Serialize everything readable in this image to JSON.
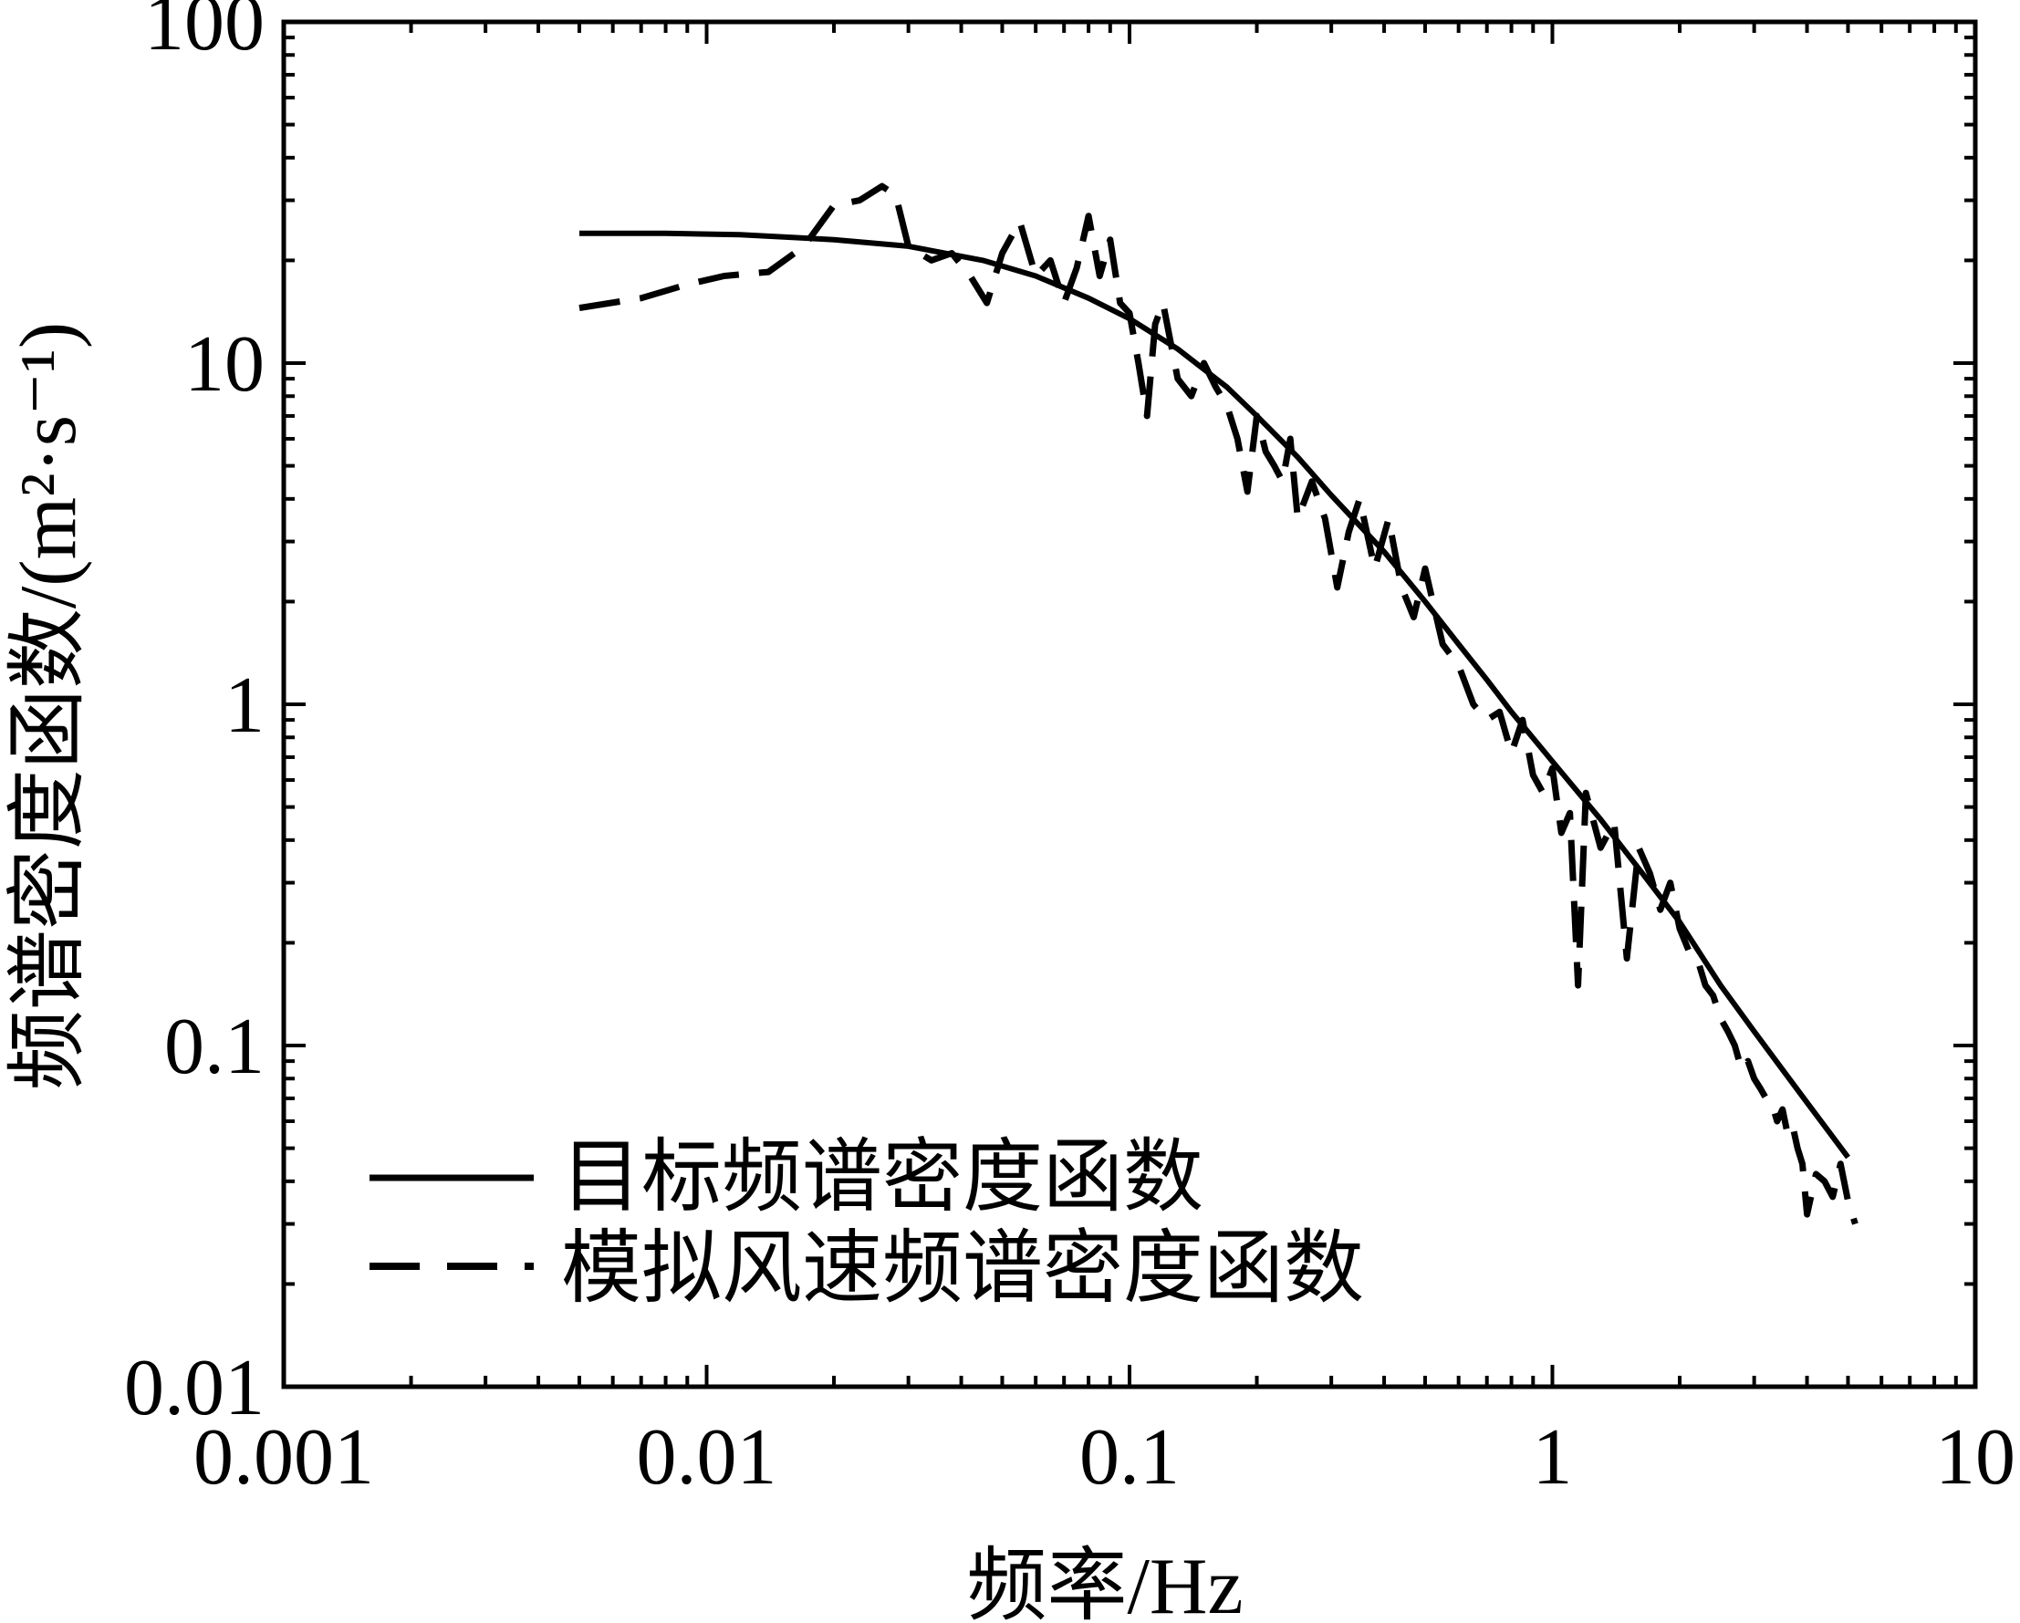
{
  "chart_data": {
    "type": "line",
    "xscale": "log",
    "yscale": "log",
    "xlim": [
      0.001,
      10
    ],
    "ylim": [
      0.01,
      100
    ],
    "xticks": [
      0.001,
      0.01,
      0.1,
      1,
      10
    ],
    "xtick_labels": [
      "0.001",
      "0.01",
      "0.1",
      "1",
      "10"
    ],
    "yticks": [
      0.01,
      0.1,
      1,
      10,
      100
    ],
    "ytick_labels": [
      "0.01",
      "0.1",
      "1",
      "10",
      "100"
    ],
    "xlabel": "频率/Hz",
    "ylabel": "频谱密度函数/(m²·s⁻¹)",
    "grid": false,
    "legend_position": "bottom-left",
    "series": [
      {
        "name": "目标频谱密度函数",
        "style": "solid",
        "color": "#000000",
        "x": [
          0.005,
          0.008,
          0.012,
          0.02,
          0.03,
          0.045,
          0.06,
          0.08,
          0.1,
          0.13,
          0.17,
          0.2,
          0.25,
          0.3,
          0.4,
          0.5,
          0.6,
          0.7,
          0.8,
          1.0,
          1.3,
          1.6,
          2.0,
          2.5,
          3.0,
          3.5,
          4.0,
          4.5,
          5.0
        ],
        "y": [
          24,
          24,
          23.8,
          23,
          22,
          20,
          18,
          15.5,
          13.5,
          11,
          8.5,
          7,
          5.3,
          4.1,
          2.8,
          2.0,
          1.5,
          1.18,
          0.95,
          0.68,
          0.46,
          0.33,
          0.23,
          0.15,
          0.11,
          0.085,
          0.068,
          0.056,
          0.047
        ]
      },
      {
        "name": "模拟风速频谱密度函数",
        "style": "dashed",
        "color": "#000000",
        "x": [
          0.005,
          0.007,
          0.009,
          0.011,
          0.014,
          0.017,
          0.02,
          0.023,
          0.026,
          0.028,
          0.03,
          0.034,
          0.038,
          0.042,
          0.046,
          0.05,
          0.055,
          0.06,
          0.065,
          0.07,
          0.075,
          0.08,
          0.085,
          0.09,
          0.095,
          0.1,
          0.105,
          0.11,
          0.115,
          0.12,
          0.13,
          0.14,
          0.15,
          0.16,
          0.17,
          0.18,
          0.19,
          0.2,
          0.21,
          0.22,
          0.23,
          0.24,
          0.25,
          0.27,
          0.29,
          0.31,
          0.33,
          0.35,
          0.38,
          0.41,
          0.44,
          0.47,
          0.5,
          0.55,
          0.6,
          0.65,
          0.7,
          0.75,
          0.8,
          0.85,
          0.9,
          0.95,
          1.0,
          1.05,
          1.1,
          1.15,
          1.2,
          1.3,
          1.4,
          1.5,
          1.6,
          1.7,
          1.8,
          1.9,
          2.0,
          2.1,
          2.2,
          2.3,
          2.4,
          2.5,
          2.6,
          2.7,
          2.8,
          2.9,
          3.0,
          3.1,
          3.2,
          3.3,
          3.4,
          3.5,
          3.6,
          3.7,
          3.8,
          3.9,
          4.0,
          4.2,
          4.4,
          4.6,
          4.8,
          5.0,
          5.2
        ],
        "y": [
          14.5,
          15.5,
          17,
          18,
          18.5,
          22,
          29,
          30,
          33,
          31,
          22,
          20,
          21,
          18,
          15,
          21,
          26,
          18,
          20,
          15,
          19,
          27,
          18,
          23,
          15,
          14,
          10,
          7,
          13,
          15,
          9,
          8,
          10,
          8.5,
          7.5,
          6,
          4.2,
          7,
          5.5,
          5,
          4.5,
          6,
          3.5,
          4.5,
          3.5,
          2.2,
          3.2,
          4,
          2.5,
          3.5,
          2.2,
          1.8,
          2.5,
          1.5,
          1.3,
          1.0,
          0.9,
          0.95,
          0.72,
          0.9,
          0.62,
          0.55,
          0.65,
          0.42,
          0.48,
          0.15,
          0.55,
          0.38,
          0.45,
          0.18,
          0.38,
          0.32,
          0.25,
          0.3,
          0.22,
          0.19,
          0.18,
          0.15,
          0.14,
          0.12,
          0.11,
          0.1,
          0.085,
          0.09,
          0.08,
          0.075,
          0.07,
          0.068,
          0.06,
          0.065,
          0.055,
          0.058,
          0.05,
          0.045,
          0.032,
          0.042,
          0.04,
          0.036,
          0.045,
          0.035,
          0.03
        ]
      }
    ]
  }
}
